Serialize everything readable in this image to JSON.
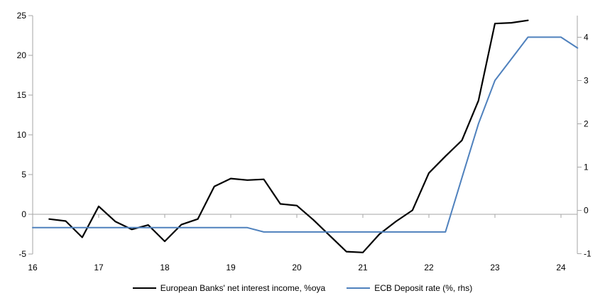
{
  "colors": {
    "axis_gray": "#a6a6a6",
    "nii_line": "#000000",
    "ecb_line": "#4f81bd",
    "background": "#ffffff",
    "text": "#000000"
  },
  "legend": [
    {
      "label": "European Banks' net interest income, %oya",
      "color": "#000000"
    },
    {
      "label": "ECB Deposit rate (%, rhs)",
      "color": "#4f81bd"
    }
  ],
  "chart_data": {
    "type": "line",
    "title": "",
    "xlabel": "",
    "ylabel_left": "",
    "ylabel_right": "",
    "grid": "zero-line-only",
    "legend_position": "bottom-center",
    "x_ticks": [
      16,
      17,
      18,
      19,
      20,
      21,
      22,
      23,
      24
    ],
    "left_axis": {
      "min": -5,
      "max": 25,
      "ticks": [
        25,
        20,
        15,
        10,
        5,
        0,
        -5
      ]
    },
    "right_axis": {
      "min": -1,
      "max": 4.5,
      "ticks": [
        4,
        3,
        2,
        1,
        0,
        -1
      ]
    },
    "series": [
      {
        "name": "European Banks' net interest income, %oya",
        "axis": "left",
        "color": "#000000",
        "stroke_width": 2.2,
        "x": [
          16.25,
          16.5,
          16.75,
          17.0,
          17.25,
          17.5,
          17.75,
          18.0,
          18.25,
          18.5,
          18.75,
          19.0,
          19.25,
          19.5,
          19.75,
          20.0,
          20.25,
          20.5,
          20.75,
          21.0,
          21.25,
          21.5,
          21.75,
          22.0,
          22.25,
          22.5,
          22.75,
          23.0,
          23.25,
          23.5
        ],
        "values": [
          -0.6,
          -0.85,
          -2.9,
          1.0,
          -0.9,
          -1.9,
          -1.35,
          -3.4,
          -1.3,
          -0.6,
          3.5,
          4.5,
          4.3,
          4.4,
          1.3,
          1.1,
          -0.7,
          -2.7,
          -4.7,
          -4.8,
          -2.5,
          -0.9,
          0.5,
          5.2,
          7.3,
          9.3,
          14.3,
          24.0,
          24.1,
          24.4
        ]
      },
      {
        "name": "ECB Deposit rate (%, rhs)",
        "axis": "right",
        "color": "#4f81bd",
        "stroke_width": 2,
        "x": [
          16.0,
          16.25,
          16.5,
          16.75,
          17.0,
          17.25,
          17.5,
          17.75,
          18.0,
          18.25,
          18.5,
          18.75,
          19.0,
          19.25,
          19.5,
          19.75,
          20.0,
          20.25,
          20.5,
          20.75,
          21.0,
          21.25,
          21.5,
          21.75,
          22.0,
          22.25,
          22.5,
          22.75,
          23.0,
          23.25,
          23.5,
          23.75,
          24.0,
          24.25
        ],
        "values": [
          -0.4,
          -0.4,
          -0.4,
          -0.4,
          -0.4,
          -0.4,
          -0.4,
          -0.4,
          -0.4,
          -0.4,
          -0.4,
          -0.4,
          -0.4,
          -0.4,
          -0.5,
          -0.5,
          -0.5,
          -0.5,
          -0.5,
          -0.5,
          -0.5,
          -0.5,
          -0.5,
          -0.5,
          -0.5,
          -0.5,
          0.75,
          2.0,
          3.0,
          3.5,
          4.0,
          4.0,
          4.0,
          3.75
        ]
      }
    ]
  }
}
